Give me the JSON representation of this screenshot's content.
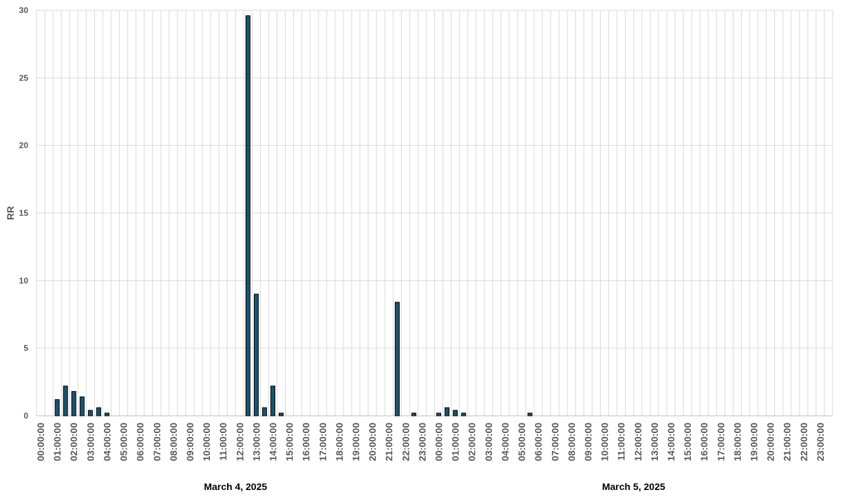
{
  "chart_data": {
    "type": "bar",
    "y_label": "RR",
    "categories": [
      "00:00:00",
      null,
      "01:00:00",
      null,
      "02:00:00",
      null,
      "03:00:00",
      null,
      "04:00:00",
      null,
      "05:00:00",
      null,
      "06:00:00",
      null,
      "07:00:00",
      null,
      "08:00:00",
      null,
      "09:00:00",
      null,
      "10:00:00",
      null,
      "11:00:00",
      null,
      "12:00:00",
      null,
      "13:00:00",
      null,
      "14:00:00",
      null,
      "15:00:00",
      null,
      "16:00:00",
      null,
      "17:00:00",
      null,
      "18:00:00",
      null,
      "19:00:00",
      null,
      "20:00:00",
      null,
      "21:00:00",
      null,
      "22:00:00",
      null,
      "23:00:00",
      null,
      "00:00:00",
      null,
      "01:00:00",
      null,
      "02:00:00",
      null,
      "03:00:00",
      null,
      "04:00:00",
      null,
      "05:00:00",
      null,
      "06:00:00",
      null,
      "07:00:00",
      null,
      "08:00:00",
      null,
      "09:00:00",
      null,
      "10:00:00",
      null,
      "11:00:00",
      null,
      "12:00:00",
      null,
      "13:00:00",
      null,
      "14:00:00",
      null,
      "15:00:00",
      null,
      "16:00:00",
      null,
      "17:00:00",
      null,
      "18:00:00",
      null,
      "19:00:00",
      null,
      "20:00:00",
      null,
      "21:00:00",
      null,
      "22:00:00",
      null,
      "23:00:00",
      null
    ],
    "values": [
      0,
      0,
      1.2,
      2.2,
      1.8,
      1.4,
      0.4,
      0.6,
      0.2,
      0,
      0,
      0,
      0,
      0,
      0,
      0,
      0,
      0,
      0,
      0,
      0,
      0,
      0,
      0,
      0,
      29.6,
      9,
      0.6,
      2.2,
      0.2,
      0,
      0,
      0,
      0,
      0,
      0,
      0,
      0,
      0,
      0,
      0,
      0,
      0,
      8.4,
      0,
      0.2,
      0,
      0,
      0.2,
      0.6,
      0.4,
      0.2,
      0,
      0,
      0,
      0,
      0,
      0,
      0,
      0.2,
      0,
      0,
      0,
      0,
      0,
      0,
      0,
      0,
      0,
      0,
      0,
      0,
      0,
      0,
      0,
      0,
      0,
      0,
      0,
      0,
      0,
      0,
      0,
      0,
      0,
      0,
      0,
      0,
      0,
      0,
      0,
      0,
      0,
      0,
      0,
      0
    ],
    "group_labels": [
      "March 4, 2025",
      "March 5, 2025"
    ],
    "color": "#1b536e",
    "ylim": [
      0,
      30
    ],
    "yticks": [
      0,
      5,
      10,
      15,
      20,
      25,
      30
    ],
    "grid": true
  }
}
